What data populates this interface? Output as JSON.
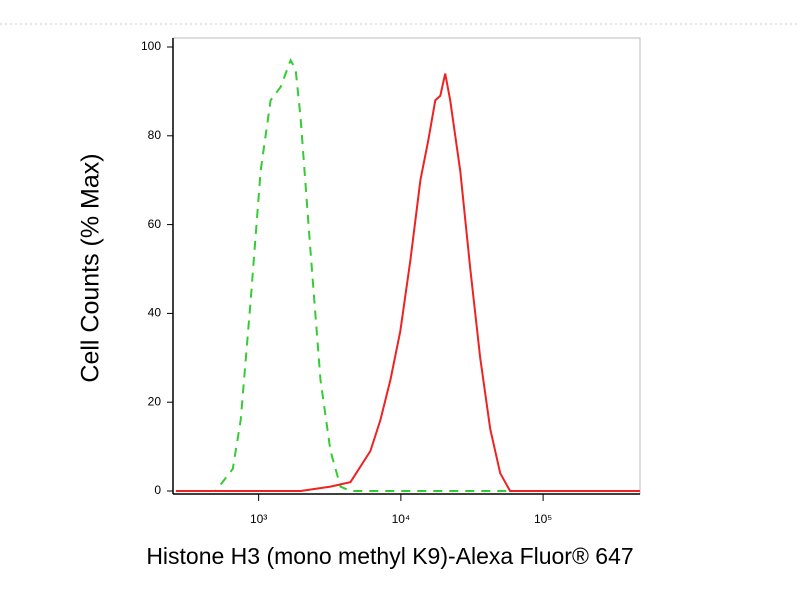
{
  "chart_data": {
    "type": "line",
    "x_label": "Histone H3 (mono methyl K9)-Alexa Fluor® 647",
    "y_label": "Cell Counts (% Max)",
    "xlog": true,
    "xlim": [
      250,
      480000
    ],
    "ylim": [
      0,
      100
    ],
    "xticks": [
      {
        "value": 1000,
        "label": "10³"
      },
      {
        "value": 10000,
        "label": "10⁴"
      },
      {
        "value": 100000,
        "label": "10⁵"
      }
    ],
    "yticks": [
      0,
      20,
      40,
      60,
      80,
      100
    ],
    "series": [
      {
        "color": "#33cc33",
        "dashed": true,
        "x": [
          262,
          499,
          658,
          748,
          879,
          1033,
          1214,
          1427,
          1678,
          1818,
          1972,
          2317,
          2723,
          3200,
          3761,
          4422,
          479000
        ],
        "values": [
          0,
          0,
          5,
          16,
          43,
          72,
          88,
          91,
          97,
          95,
          84,
          54,
          25,
          9,
          1,
          0,
          0
        ]
      },
      {
        "color": "#ee2222",
        "dashed": false,
        "x": [
          262,
          1972,
          3200,
          4422,
          6109,
          7178,
          8438,
          9916,
          11660,
          13710,
          15600,
          17460,
          18920,
          20510,
          22230,
          26180,
          30760,
          36140,
          42460,
          49890,
          58620,
          479000
        ],
        "values": [
          0,
          0,
          1,
          2,
          9,
          16,
          25,
          36,
          52,
          70,
          79,
          88,
          89,
          94,
          88,
          72,
          50,
          30,
          14,
          4,
          0,
          0
        ]
      }
    ]
  }
}
